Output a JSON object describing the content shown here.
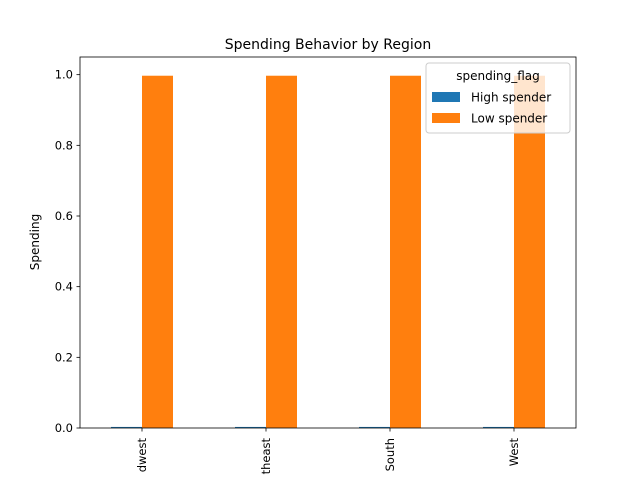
{
  "chart_data": {
    "type": "bar",
    "title": "Spending Behavior by Region",
    "xlabel": "",
    "ylabel": "Spending",
    "categories": [
      "Midwest",
      "Northeast",
      "South",
      "West"
    ],
    "category_tick_labels": [
      "dwest",
      "theast",
      "South",
      "West"
    ],
    "series": [
      {
        "name": "High spender",
        "color": "#1f77b4",
        "values": [
          0.003,
          0.003,
          0.003,
          0.003
        ]
      },
      {
        "name": "Low spender",
        "color": "#ff7f0e",
        "values": [
          0.997,
          0.997,
          0.997,
          0.997
        ]
      }
    ],
    "ylim": [
      0,
      1.05
    ],
    "yticks": [
      0.0,
      0.2,
      0.4,
      0.6,
      0.8,
      1.0
    ],
    "ytick_labels": [
      "0.0",
      "0.2",
      "0.4",
      "0.6",
      "0.8",
      "1.0"
    ],
    "xtick_rotation": "vertical",
    "grid": false,
    "legend": {
      "title": "spending_flag",
      "placement": "top-right"
    }
  }
}
